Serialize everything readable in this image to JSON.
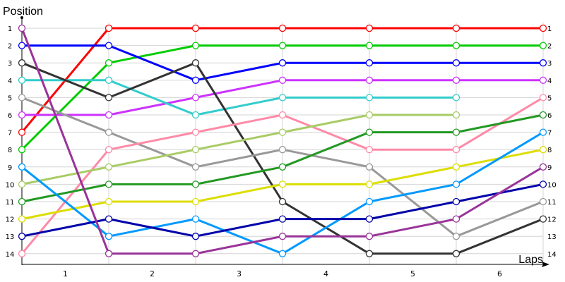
{
  "chart_data": {
    "type": "line",
    "xlabel": "Laps",
    "ylabel": "Position",
    "lap_labels": [
      "1",
      "2",
      "3",
      "4",
      "5",
      "6"
    ],
    "position_ticks": [
      "1",
      "2",
      "3",
      "4",
      "5",
      "6",
      "7",
      "8",
      "9",
      "10",
      "11",
      "12",
      "13",
      "14"
    ],
    "ylim": [
      1,
      14
    ],
    "y_inverted": true,
    "grid": true,
    "series": [
      {
        "color": "#ff0000",
        "values": [
          7,
          1,
          1,
          1,
          1,
          1,
          1
        ]
      },
      {
        "color": "#00cc00",
        "values": [
          8,
          3,
          2,
          2,
          2,
          2,
          2
        ]
      },
      {
        "color": "#0000ff",
        "values": [
          2,
          2,
          4,
          3,
          3,
          3,
          3
        ]
      },
      {
        "color": "#cc33ff",
        "values": [
          6,
          6,
          5,
          4,
          4,
          4,
          4
        ]
      },
      {
        "color": "#33cccc",
        "values": [
          4,
          4,
          6,
          5,
          5,
          5
        ]
      },
      {
        "color": "#333333",
        "values": [
          3,
          5,
          3,
          11,
          14,
          14,
          12
        ]
      },
      {
        "color": "#999999",
        "values": [
          5,
          7,
          9,
          8,
          9,
          13,
          11
        ]
      },
      {
        "color": "#ff8aa8",
        "values": [
          14,
          8,
          7,
          6,
          8,
          8,
          5
        ]
      },
      {
        "color": "#a8cc66",
        "values": [
          10,
          9,
          8,
          7,
          6,
          6
        ]
      },
      {
        "color": "#229922",
        "values": [
          11,
          10,
          10,
          9,
          7,
          7,
          6
        ]
      },
      {
        "color": "#dddd00",
        "values": [
          12,
          11,
          11,
          10,
          10,
          9,
          8
        ]
      },
      {
        "color": "#0099ff",
        "values": [
          9,
          13,
          12,
          14,
          11,
          10,
          7
        ]
      },
      {
        "color": "#0000aa",
        "values": [
          13,
          12,
          13,
          12,
          12,
          11,
          10
        ]
      },
      {
        "color": "#993399",
        "values": [
          1,
          14,
          14,
          13,
          13,
          12,
          9
        ]
      }
    ]
  }
}
